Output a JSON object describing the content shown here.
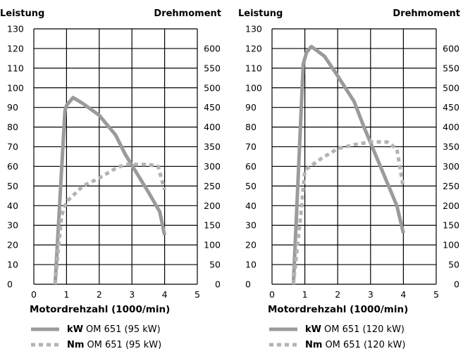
{
  "chart_data": [
    {
      "type": "line",
      "left_axis_title": "Leistung",
      "right_axis_title": "Drehmoment",
      "xlabel": "Motordrehzahl (1000/min)",
      "xlim": [
        0,
        5
      ],
      "ylim_left": [
        0,
        130
      ],
      "ylim_right": [
        0,
        650
      ],
      "x_ticks": [
        "0",
        "1",
        "2",
        "3",
        "4",
        "5"
      ],
      "left_ticks": [
        "0",
        "10",
        "20",
        "30",
        "40",
        "50",
        "60",
        "70",
        "80",
        "90",
        "100",
        "110",
        "120",
        "130"
      ],
      "right_ticks": [
        "0",
        "50",
        "100",
        "150",
        "200",
        "250",
        "300",
        "350",
        "400",
        "450",
        "500",
        "550",
        "600"
      ],
      "grid": true,
      "legend_position": "bottom",
      "series": [
        {
          "unit": "kW",
          "label": "OM 651 (95 kW)",
          "axis": "left",
          "style": "solid",
          "color": "#9b9b9b",
          "x": [
            0.65,
            0.95,
            1.0,
            1.2,
            1.5,
            2.0,
            2.5,
            2.8,
            3.5,
            3.85,
            4.0
          ],
          "y": [
            0,
            88,
            91,
            95,
            92,
            86,
            76,
            66,
            47,
            37,
            25
          ]
        },
        {
          "unit": "Nm",
          "label": "OM 651 (95 kW)",
          "axis": "right",
          "style": "dashed",
          "color": "#b3b3b3",
          "x": [
            0.65,
            0.85,
            1.0,
            1.5,
            2.0,
            2.5,
            2.8,
            3.5,
            3.8,
            4.0
          ],
          "y": [
            0,
            175,
            210,
            250,
            270,
            295,
            305,
            305,
            300,
            240
          ]
        }
      ]
    },
    {
      "type": "line",
      "left_axis_title": "Leistung",
      "right_axis_title": "Drehmoment",
      "xlabel": "Motordrehzahl (1000/min)",
      "xlim": [
        0,
        5
      ],
      "ylim_left": [
        0,
        130
      ],
      "ylim_right": [
        0,
        650
      ],
      "x_ticks": [
        "0",
        "1",
        "2",
        "3",
        "4",
        "5"
      ],
      "left_ticks": [
        "0",
        "10",
        "20",
        "30",
        "40",
        "50",
        "60",
        "70",
        "80",
        "90",
        "100",
        "110",
        "120",
        "130"
      ],
      "right_ticks": [
        "0",
        "50",
        "100",
        "150",
        "200",
        "250",
        "300",
        "350",
        "400",
        "450",
        "500",
        "550",
        "600"
      ],
      "grid": true,
      "legend_position": "bottom",
      "series": [
        {
          "unit": "kW",
          "label": "OM 651 (120 kW)",
          "axis": "left",
          "style": "solid",
          "color": "#9b9b9b",
          "x": [
            0.65,
            0.95,
            1.05,
            1.2,
            1.6,
            2.0,
            2.5,
            2.8,
            3.5,
            3.8,
            4.0
          ],
          "y": [
            0,
            112,
            118,
            121,
            116,
            106,
            93,
            80,
            52,
            40,
            26
          ]
        },
        {
          "unit": "Nm",
          "label": "OM 651 (120 kW)",
          "axis": "right",
          "style": "dashed",
          "color": "#b3b3b3",
          "x": [
            0.65,
            0.88,
            1.0,
            1.5,
            2.0,
            2.5,
            3.0,
            3.5,
            3.8,
            4.0
          ],
          "y": [
            0,
            180,
            290,
            320,
            345,
            355,
            362,
            362,
            345,
            245
          ]
        }
      ]
    }
  ]
}
